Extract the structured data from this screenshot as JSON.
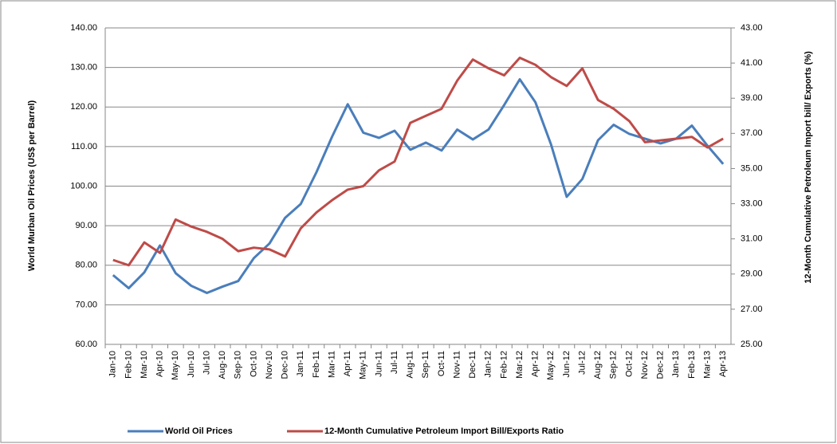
{
  "chart_data": {
    "type": "line",
    "y_axis_label": "World Murban Oil Prices (US$ per Barrel)",
    "y2_axis_label": "12-Month Cumulative Petroleum Import bill/ Exports (%)",
    "categories": [
      "Jan-10",
      "Feb-10",
      "Mar-10",
      "Apr-10",
      "May-10",
      "Jun-10",
      "Jul-10",
      "Aug-10",
      "Sep-10",
      "Oct-10",
      "Nov-10",
      "Dec-10",
      "Jan-11",
      "Feb-11",
      "Mar-11",
      "Apr-11",
      "May-11",
      "Jun-11",
      "Jul-11",
      "Aug-11",
      "Sep-11",
      "Oct-11",
      "Nov-11",
      "Dec-11",
      "Jan-12",
      "Feb-12",
      "Mar-12",
      "Apr-12",
      "May-12",
      "Jun-12",
      "Jul-12",
      "Aug-12",
      "Sep-12",
      "Oct-12",
      "Nov-12",
      "Dec-12",
      "Jan-13",
      "Feb-13",
      "Mar-13",
      "Apr-13"
    ],
    "series": [
      {
        "name": "World Oil Prices",
        "color": "#4a7ebb",
        "values": [
          77.5,
          74.2,
          78.2,
          85,
          78,
          74.8,
          73,
          74.6,
          76,
          81.8,
          85.5,
          92,
          95.5,
          103.5,
          112.5,
          120.7,
          113.5,
          112.2,
          114,
          109.2,
          111,
          109,
          114.3,
          111.8,
          114.3,
          120.5,
          127,
          121.2,
          110.5,
          97.3,
          101.8,
          111.6,
          115.5,
          113.2,
          112,
          110.8,
          112,
          115.3,
          110.2,
          105.6
        ]
      },
      {
        "name": "12-Month Cumulative Petroleum Import Bill/Exports Ratio",
        "color": "#be4b48",
        "axis": "y2",
        "values": [
          29.8,
          29.5,
          30.8,
          30.2,
          32.1,
          31.7,
          31.4,
          31,
          30.3,
          30.5,
          30.4,
          30,
          31.6,
          32.5,
          33.2,
          33.8,
          34,
          34.9,
          35.4,
          37.6,
          38,
          38.4,
          40,
          41.2,
          40.7,
          40.3,
          41.3,
          40.9,
          40.2,
          39.7,
          40.7,
          38.9,
          38.4,
          37.7,
          36.5,
          36.6,
          36.7,
          36.8,
          36.2,
          36.7
        ]
      }
    ],
    "ylim": [
      60,
      140
    ],
    "yticks": [
      {
        "value": 60,
        "label": "60.00"
      },
      {
        "value": 70,
        "label": "70.00"
      },
      {
        "value": 80,
        "label": "80.00"
      },
      {
        "value": 90,
        "label": "90.00"
      },
      {
        "value": 100,
        "label": "100.00"
      },
      {
        "value": 110,
        "label": "110.00"
      },
      {
        "value": 120,
        "label": "120.00"
      },
      {
        "value": 130,
        "label": "130.00"
      },
      {
        "value": 140,
        "label": "140.00"
      }
    ],
    "y2lim": [
      25,
      43
    ],
    "y2ticks": [
      {
        "value": 25,
        "label": "25.00"
      },
      {
        "value": 27,
        "label": "27.00"
      },
      {
        "value": 29,
        "label": "29.00"
      },
      {
        "value": 31,
        "label": "31.00"
      },
      {
        "value": 33,
        "label": "33.00"
      },
      {
        "value": 35,
        "label": "35.00"
      },
      {
        "value": 37,
        "label": "37.00"
      },
      {
        "value": 39,
        "label": "39.00"
      },
      {
        "value": 41,
        "label": "41.00"
      },
      {
        "value": 43,
        "label": "43.00"
      }
    ],
    "grid": true,
    "legend": "bottom"
  }
}
